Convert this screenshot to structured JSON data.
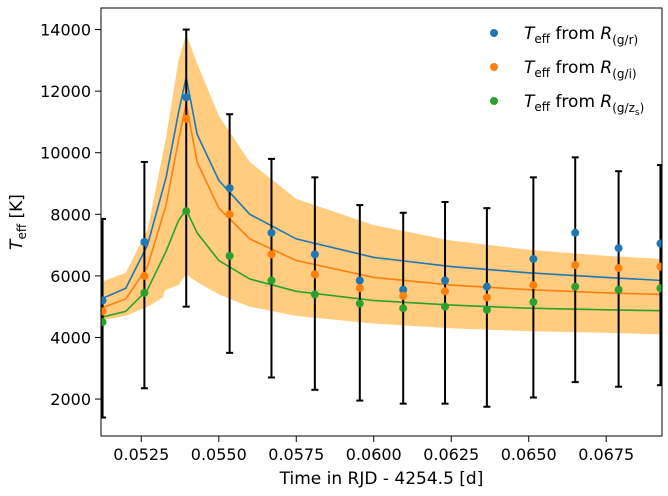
{
  "chart_data": {
    "type": "scatter",
    "xlabel": "Time in RJD - 4254.5  [d]",
    "ylabel": {
      "main": "T",
      "sub": "eff",
      "unit": " [K]"
    },
    "xlim": [
      0.0512,
      0.0693
    ],
    "ylim": [
      800,
      14700
    ],
    "xticks": [
      {
        "value": 0.0525,
        "label": "0.0525"
      },
      {
        "value": 0.055,
        "label": "0.0550"
      },
      {
        "value": 0.0575,
        "label": "0.0575"
      },
      {
        "value": 0.06,
        "label": "0.0600"
      },
      {
        "value": 0.0625,
        "label": "0.0625"
      },
      {
        "value": 0.065,
        "label": "0.0650"
      },
      {
        "value": 0.0675,
        "label": "0.0675"
      }
    ],
    "yticks": [
      {
        "value": 2000,
        "label": "2000"
      },
      {
        "value": 4000,
        "label": "4000"
      },
      {
        "value": 6000,
        "label": "6000"
      },
      {
        "value": 8000,
        "label": "8000"
      },
      {
        "value": 10000,
        "label": "10000"
      },
      {
        "value": 12000,
        "label": "12000"
      },
      {
        "value": 14000,
        "label": "14000"
      }
    ],
    "grid": false,
    "legend_position": "top-right",
    "colors": {
      "gr": "#1f77b4",
      "gi": "#ff7f0e",
      "gz": "#2ca02c",
      "band": "#ffcc80",
      "errorbar": "#000000"
    },
    "x": [
      0.05125,
      0.0526,
      0.05395,
      0.05535,
      0.0567,
      0.0581,
      0.05955,
      0.06095,
      0.0623,
      0.06365,
      0.06515,
      0.0665,
      0.0679,
      0.06925
    ],
    "series": [
      {
        "key": "gr",
        "legend_prefix": "T",
        "legend_prefix_sub": "eff",
        "legend_mid": " from R",
        "legend_sub": "(g/r)",
        "color": "#1f77b4",
        "values": [
          5200,
          7100,
          11800,
          8850,
          7400,
          6700,
          5850,
          5550,
          5850,
          5650,
          6550,
          7400,
          6900,
          7050
        ],
        "fit": [
          [
            0.0512,
            5250
          ],
          [
            0.052,
            5600
          ],
          [
            0.0527,
            7000
          ],
          [
            0.0533,
            9200
          ],
          [
            0.0537,
            11300
          ],
          [
            0.05395,
            12450
          ],
          [
            0.0543,
            10600
          ],
          [
            0.055,
            9100
          ],
          [
            0.056,
            8000
          ],
          [
            0.0575,
            7200
          ],
          [
            0.06,
            6600
          ],
          [
            0.0625,
            6300
          ],
          [
            0.065,
            6100
          ],
          [
            0.0675,
            5950
          ],
          [
            0.0693,
            5850
          ]
        ]
      },
      {
        "key": "gi",
        "legend_prefix": "T",
        "legend_prefix_sub": "eff",
        "legend_mid": " from R",
        "legend_sub": "(g/i)",
        "color": "#ff7f0e",
        "values": [
          4850,
          6000,
          11100,
          8000,
          6700,
          6050,
          5600,
          5350,
          5500,
          5300,
          5700,
          6350,
          6250,
          6300
        ],
        "fit": [
          [
            0.0512,
            4950
          ],
          [
            0.052,
            5250
          ],
          [
            0.0527,
            6300
          ],
          [
            0.0533,
            8300
          ],
          [
            0.0537,
            10400
          ],
          [
            0.05395,
            11600
          ],
          [
            0.0543,
            9700
          ],
          [
            0.055,
            8200
          ],
          [
            0.056,
            7200
          ],
          [
            0.0575,
            6500
          ],
          [
            0.06,
            5950
          ],
          [
            0.0625,
            5700
          ],
          [
            0.065,
            5550
          ],
          [
            0.0675,
            5450
          ],
          [
            0.0693,
            5400
          ]
        ]
      },
      {
        "key": "gz",
        "legend_prefix": "T",
        "legend_prefix_sub": "eff",
        "legend_mid": " from R",
        "legend_sub": "(g/z",
        "legend_sub_sub": "s",
        "legend_sub_close": ")",
        "color": "#2ca02c",
        "values": [
          4500,
          5450,
          8100,
          6650,
          5850,
          5400,
          5100,
          4950,
          5000,
          4900,
          5150,
          5650,
          5550,
          5600
        ],
        "fit": [
          [
            0.0512,
            4650
          ],
          [
            0.052,
            4850
          ],
          [
            0.0527,
            5550
          ],
          [
            0.0533,
            6800
          ],
          [
            0.0537,
            7800
          ],
          [
            0.05395,
            8150
          ],
          [
            0.0543,
            7400
          ],
          [
            0.055,
            6500
          ],
          [
            0.056,
            5900
          ],
          [
            0.0575,
            5500
          ],
          [
            0.06,
            5200
          ],
          [
            0.0625,
            5050
          ],
          [
            0.065,
            4950
          ],
          [
            0.0675,
            4900
          ],
          [
            0.0693,
            4870
          ]
        ]
      }
    ],
    "errorbars": [
      {
        "x": 0.05125,
        "low": 1400,
        "high": 7850
      },
      {
        "x": 0.0526,
        "low": 2350,
        "high": 9700
      },
      {
        "x": 0.05395,
        "low": 5000,
        "high": 14000
      },
      {
        "x": 0.05535,
        "low": 3500,
        "high": 11250
      },
      {
        "x": 0.0567,
        "low": 2700,
        "high": 9800
      },
      {
        "x": 0.0581,
        "low": 2300,
        "high": 9200
      },
      {
        "x": 0.05955,
        "low": 1950,
        "high": 8300
      },
      {
        "x": 0.06095,
        "low": 1850,
        "high": 8050
      },
      {
        "x": 0.0623,
        "low": 1850,
        "high": 8400
      },
      {
        "x": 0.06365,
        "low": 1750,
        "high": 8200
      },
      {
        "x": 0.06515,
        "low": 2050,
        "high": 9200
      },
      {
        "x": 0.0665,
        "low": 2550,
        "high": 9850
      },
      {
        "x": 0.0679,
        "low": 2400,
        "high": 9400
      },
      {
        "x": 0.06925,
        "low": 2450,
        "high": 9600
      }
    ],
    "band": {
      "upper": [
        [
          0.0512,
          5800
        ],
        [
          0.052,
          6100
        ],
        [
          0.0527,
          7500
        ],
        [
          0.0533,
          10500
        ],
        [
          0.0537,
          13000
        ],
        [
          0.05395,
          13850
        ],
        [
          0.0543,
          12900
        ],
        [
          0.055,
          11200
        ],
        [
          0.056,
          9700
        ],
        [
          0.0575,
          8500
        ],
        [
          0.06,
          7650
        ],
        [
          0.0625,
          7150
        ],
        [
          0.065,
          6850
        ],
        [
          0.0675,
          6650
        ],
        [
          0.0693,
          6550
        ]
      ],
      "lower": [
        [
          0.0693,
          4100
        ],
        [
          0.0675,
          4150
        ],
        [
          0.065,
          4200
        ],
        [
          0.0625,
          4300
        ],
        [
          0.06,
          4450
        ],
        [
          0.0575,
          4700
        ],
        [
          0.056,
          5000
        ],
        [
          0.055,
          5400
        ],
        [
          0.0543,
          5800
        ],
        [
          0.05395,
          6050
        ],
        [
          0.0537,
          5700
        ],
        [
          0.0533,
          5550
        ],
        [
          0.05325,
          5500
        ],
        [
          0.0532,
          5300
        ],
        [
          0.0527,
          5000
        ],
        [
          0.052,
          4700
        ],
        [
          0.0512,
          4550
        ]
      ]
    }
  }
}
